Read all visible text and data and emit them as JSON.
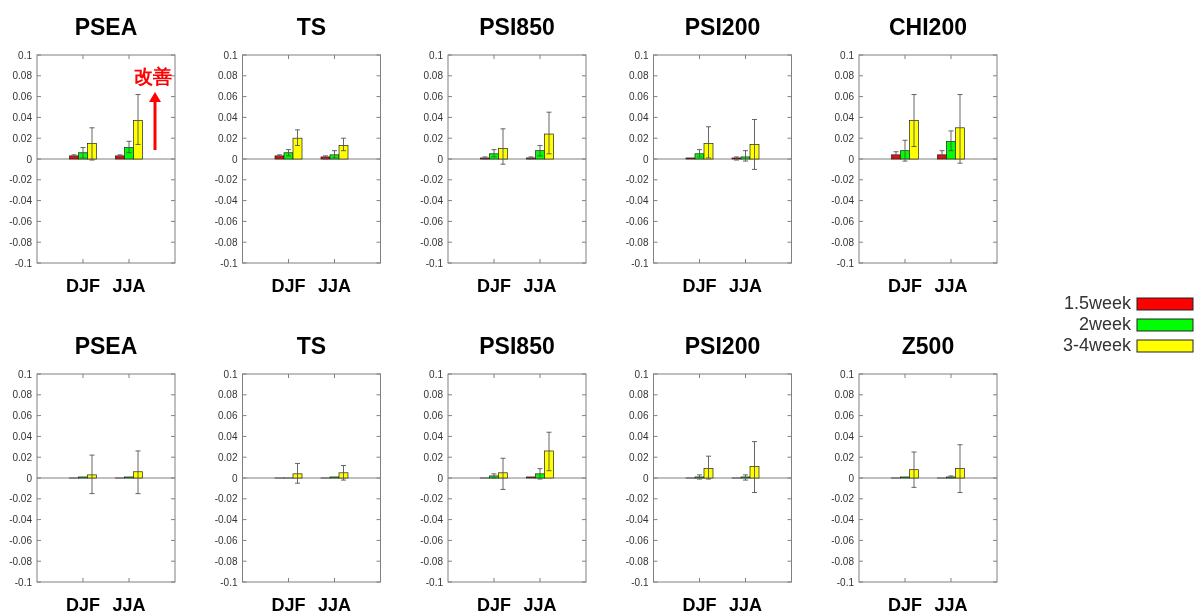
{
  "chart_data": [
    {
      "type": "bar",
      "title": "PSEA",
      "categories": [
        "DJF",
        "JJA"
      ],
      "ylim": [
        -0.1,
        0.1
      ],
      "yticks": [
        -0.1,
        -0.08,
        -0.06,
        -0.04,
        -0.02,
        0,
        0.02,
        0.04,
        0.06,
        0.08,
        0.1
      ],
      "annotations": [
        "改善"
      ],
      "series": [
        {
          "color": "#ff0000",
          "values": [
            0.003,
            0.003
          ],
          "errors": [
            [
              0.002,
              0.004
            ],
            [
              0.002,
              0.004
            ]
          ]
        },
        {
          "color": "#00ff00",
          "values": [
            0.006,
            0.011
          ],
          "errors": [
            [
              0.001,
              0.011
            ],
            [
              0.006,
              0.017
            ]
          ]
        },
        {
          "color": "#ffff00",
          "values": [
            0.015,
            0.037
          ],
          "errors": [
            [
              -0.001,
              0.03
            ],
            [
              0.014,
              0.062
            ]
          ]
        }
      ]
    },
    {
      "type": "bar",
      "title": "TS",
      "categories": [
        "DJF",
        "JJA"
      ],
      "ylim": [
        -0.1,
        0.1
      ],
      "yticks": [
        -0.1,
        -0.08,
        -0.06,
        -0.04,
        -0.02,
        0,
        0.02,
        0.04,
        0.06,
        0.08,
        0.1
      ],
      "series": [
        {
          "color": "#ff0000",
          "values": [
            0.003,
            0.002
          ],
          "errors": [
            [
              0.002,
              0.004
            ],
            [
              0.0,
              0.003
            ]
          ]
        },
        {
          "color": "#00ff00",
          "values": [
            0.006,
            0.004
          ],
          "errors": [
            [
              0.003,
              0.009
            ],
            [
              0.001,
              0.008
            ]
          ]
        },
        {
          "color": "#ffff00",
          "values": [
            0.02,
            0.013
          ],
          "errors": [
            [
              0.013,
              0.028
            ],
            [
              0.008,
              0.02
            ]
          ]
        }
      ]
    },
    {
      "type": "bar",
      "title": "PSI850",
      "categories": [
        "DJF",
        "JJA"
      ],
      "ylim": [
        -0.1,
        0.1
      ],
      "yticks": [
        -0.1,
        -0.08,
        -0.06,
        -0.04,
        -0.02,
        0,
        0.02,
        0.04,
        0.06,
        0.08,
        0.1
      ],
      "series": [
        {
          "color": "#ff0000",
          "values": [
            0.001,
            0.001
          ],
          "errors": [
            [
              0.0,
              0.002
            ],
            [
              0.0,
              0.002
            ]
          ]
        },
        {
          "color": "#00ff00",
          "values": [
            0.005,
            0.008
          ],
          "errors": [
            [
              0.002,
              0.009
            ],
            [
              0.003,
              0.013
            ]
          ]
        },
        {
          "color": "#ffff00",
          "values": [
            0.01,
            0.024
          ],
          "errors": [
            [
              -0.005,
              0.029
            ],
            [
              0.005,
              0.045
            ]
          ]
        }
      ]
    },
    {
      "type": "bar",
      "title": "PSI200",
      "categories": [
        "DJF",
        "JJA"
      ],
      "ylim": [
        -0.1,
        0.1
      ],
      "yticks": [
        -0.1,
        -0.08,
        -0.06,
        -0.04,
        -0.02,
        0,
        0.02,
        0.04,
        0.06,
        0.08,
        0.1
      ],
      "series": [
        {
          "color": "#ff0000",
          "values": [
            0.001,
            0.001
          ],
          "errors": [
            null,
            [
              -0.001,
              0.002
            ]
          ]
        },
        {
          "color": "#00ff00",
          "values": [
            0.005,
            0.002
          ],
          "errors": [
            [
              0.002,
              0.009
            ],
            [
              -0.002,
              0.008
            ]
          ]
        },
        {
          "color": "#ffff00",
          "values": [
            0.015,
            0.014
          ],
          "errors": [
            [
              0.001,
              0.031
            ],
            [
              -0.01,
              0.038
            ]
          ]
        }
      ]
    },
    {
      "type": "bar",
      "title": "CHI200",
      "categories": [
        "DJF",
        "JJA"
      ],
      "ylim": [
        -0.1,
        0.1
      ],
      "yticks": [
        -0.1,
        -0.08,
        -0.06,
        -0.04,
        -0.02,
        0,
        0.02,
        0.04,
        0.06,
        0.08,
        0.1
      ],
      "series": [
        {
          "color": "#ff0000",
          "values": [
            0.004,
            0.004
          ],
          "errors": [
            [
              0.002,
              0.007
            ],
            [
              0.002,
              0.008
            ]
          ]
        },
        {
          "color": "#00ff00",
          "values": [
            0.008,
            0.017
          ],
          "errors": [
            [
              -0.002,
              0.018
            ],
            [
              0.008,
              0.027
            ]
          ]
        },
        {
          "color": "#ffff00",
          "values": [
            0.037,
            0.03
          ],
          "errors": [
            [
              0.012,
              0.062
            ],
            [
              -0.004,
              0.062
            ]
          ]
        }
      ]
    },
    {
      "type": "bar",
      "title": "PSEA",
      "categories": [
        "DJF",
        "JJA"
      ],
      "ylim": [
        -0.1,
        0.1
      ],
      "yticks": [
        -0.1,
        -0.08,
        -0.06,
        -0.04,
        -0.02,
        0,
        0.02,
        0.04,
        0.06,
        0.08,
        0.1
      ],
      "series": [
        {
          "color": "#ff0000",
          "values": [
            0.0,
            0.0
          ]
        },
        {
          "color": "#00ff00",
          "values": [
            0.001,
            0.001
          ]
        },
        {
          "color": "#ffff00",
          "values": [
            0.003,
            0.006
          ],
          "errors": [
            [
              -0.015,
              0.022
            ],
            [
              -0.015,
              0.026
            ]
          ]
        }
      ]
    },
    {
      "type": "bar",
      "title": "TS",
      "categories": [
        "DJF",
        "JJA"
      ],
      "ylim": [
        -0.1,
        0.1
      ],
      "yticks": [
        -0.1,
        -0.08,
        -0.06,
        -0.04,
        -0.02,
        0,
        0.02,
        0.04,
        0.06,
        0.08,
        0.1
      ],
      "series": [
        {
          "color": "#ff0000",
          "values": [
            0.0,
            0.0
          ]
        },
        {
          "color": "#00ff00",
          "values": [
            0.0,
            0.001
          ]
        },
        {
          "color": "#ffff00",
          "values": [
            0.004,
            0.005
          ],
          "errors": [
            [
              -0.005,
              0.014
            ],
            [
              -0.002,
              0.012
            ]
          ]
        }
      ]
    },
    {
      "type": "bar",
      "title": "PSI850",
      "categories": [
        "DJF",
        "JJA"
      ],
      "ylim": [
        -0.1,
        0.1
      ],
      "yticks": [
        -0.1,
        -0.08,
        -0.06,
        -0.04,
        -0.02,
        0,
        0.02,
        0.04,
        0.06,
        0.08,
        0.1
      ],
      "series": [
        {
          "color": "#ff0000",
          "values": [
            0.0,
            0.001
          ]
        },
        {
          "color": "#00ff00",
          "values": [
            0.002,
            0.004
          ],
          "errors": [
            [
              0.0,
              0.004
            ],
            [
              -0.001,
              0.009
            ]
          ]
        },
        {
          "color": "#ffff00",
          "values": [
            0.005,
            0.026
          ],
          "errors": [
            [
              -0.011,
              0.019
            ],
            [
              0.007,
              0.044
            ]
          ]
        }
      ]
    },
    {
      "type": "bar",
      "title": "PSI200",
      "categories": [
        "DJF",
        "JJA"
      ],
      "ylim": [
        -0.1,
        0.1
      ],
      "yticks": [
        -0.1,
        -0.08,
        -0.06,
        -0.04,
        -0.02,
        0,
        0.02,
        0.04,
        0.06,
        0.08,
        0.1
      ],
      "series": [
        {
          "color": "#ff0000",
          "values": [
            0.0,
            0.0
          ]
        },
        {
          "color": "#00ff00",
          "values": [
            0.001,
            0.001
          ],
          "errors": [
            [
              -0.001,
              0.003
            ],
            [
              -0.002,
              0.003
            ]
          ]
        },
        {
          "color": "#ffff00",
          "values": [
            0.009,
            0.011
          ],
          "errors": [
            [
              -0.001,
              0.021
            ],
            [
              -0.014,
              0.035
            ]
          ]
        }
      ]
    },
    {
      "type": "bar",
      "title": "Z500",
      "categories": [
        "DJF",
        "JJA"
      ],
      "ylim": [
        -0.1,
        0.1
      ],
      "yticks": [
        -0.1,
        -0.08,
        -0.06,
        -0.04,
        -0.02,
        0,
        0.02,
        0.04,
        0.06,
        0.08,
        0.1
      ],
      "legend": "top right",
      "series": [
        {
          "name": "1.5week",
          "color": "#ff0000",
          "values": [
            0.0,
            0.0
          ]
        },
        {
          "name": "2week",
          "color": "#00ff00",
          "values": [
            0.001,
            0.001
          ],
          "errors": [
            null,
            [
              0.0,
              0.002
            ]
          ]
        },
        {
          "name": "3-4week",
          "color": "#ffff00",
          "values": [
            0.008,
            0.009
          ],
          "errors": [
            [
              -0.009,
              0.025
            ],
            [
              -0.014,
              0.032
            ]
          ]
        }
      ]
    }
  ]
}
